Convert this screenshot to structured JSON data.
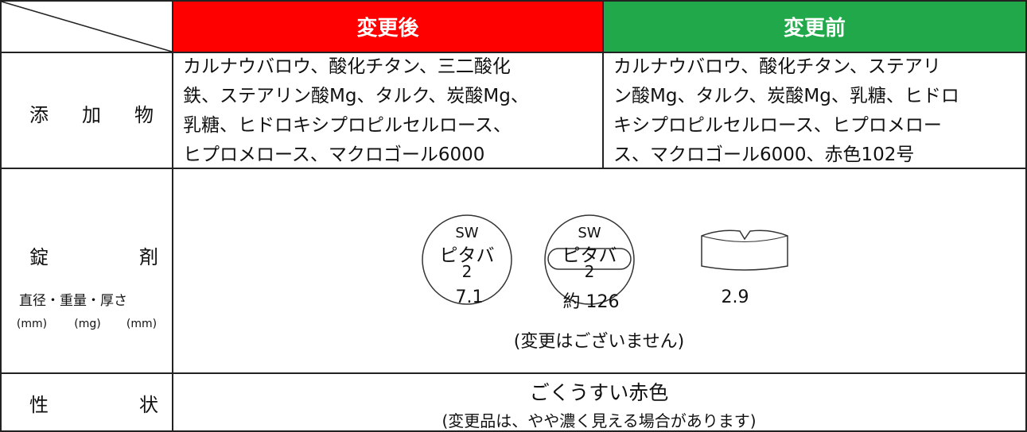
{
  "table": {
    "header": [
      "変更後",
      "変更前"
    ],
    "rows": [
      {
        "label": "添加物",
        "after": [
          "カルナウバロウ、酸化チタン、三二酸化",
          "鉄、ステアリン酸Mg、タルク、炭酸Mg、",
          "乳糖、ヒドロキシプロピルセルロース、",
          "ヒプロメロース、マクロゴール6000"
        ],
        "before": [
          "カルナウバロウ、酸化チタン、ステアリ",
          "ン酸Mg、タルク、炭酸Mg、乳糖、ヒドロ",
          "キシプロピルセルロース、ヒプロメロー",
          "ス、マクロゴール6000、赤色102号"
        ]
      },
      {
        "label": "錠剤",
        "sublabel": "直径・重量・厚さ",
        "units": [
          "(mm)",
          "(mg)",
          "(mm)"
        ],
        "imprint": [
          "SW",
          "ピタバ",
          "2"
        ],
        "values": [
          "7.1",
          "約 126",
          "2.9"
        ],
        "note": "(変更はございません)"
      },
      {
        "label": "性状",
        "text": "ごくうすい赤色",
        "note": "(変更品は、やや濃く見える場合があります)"
      }
    ]
  }
}
